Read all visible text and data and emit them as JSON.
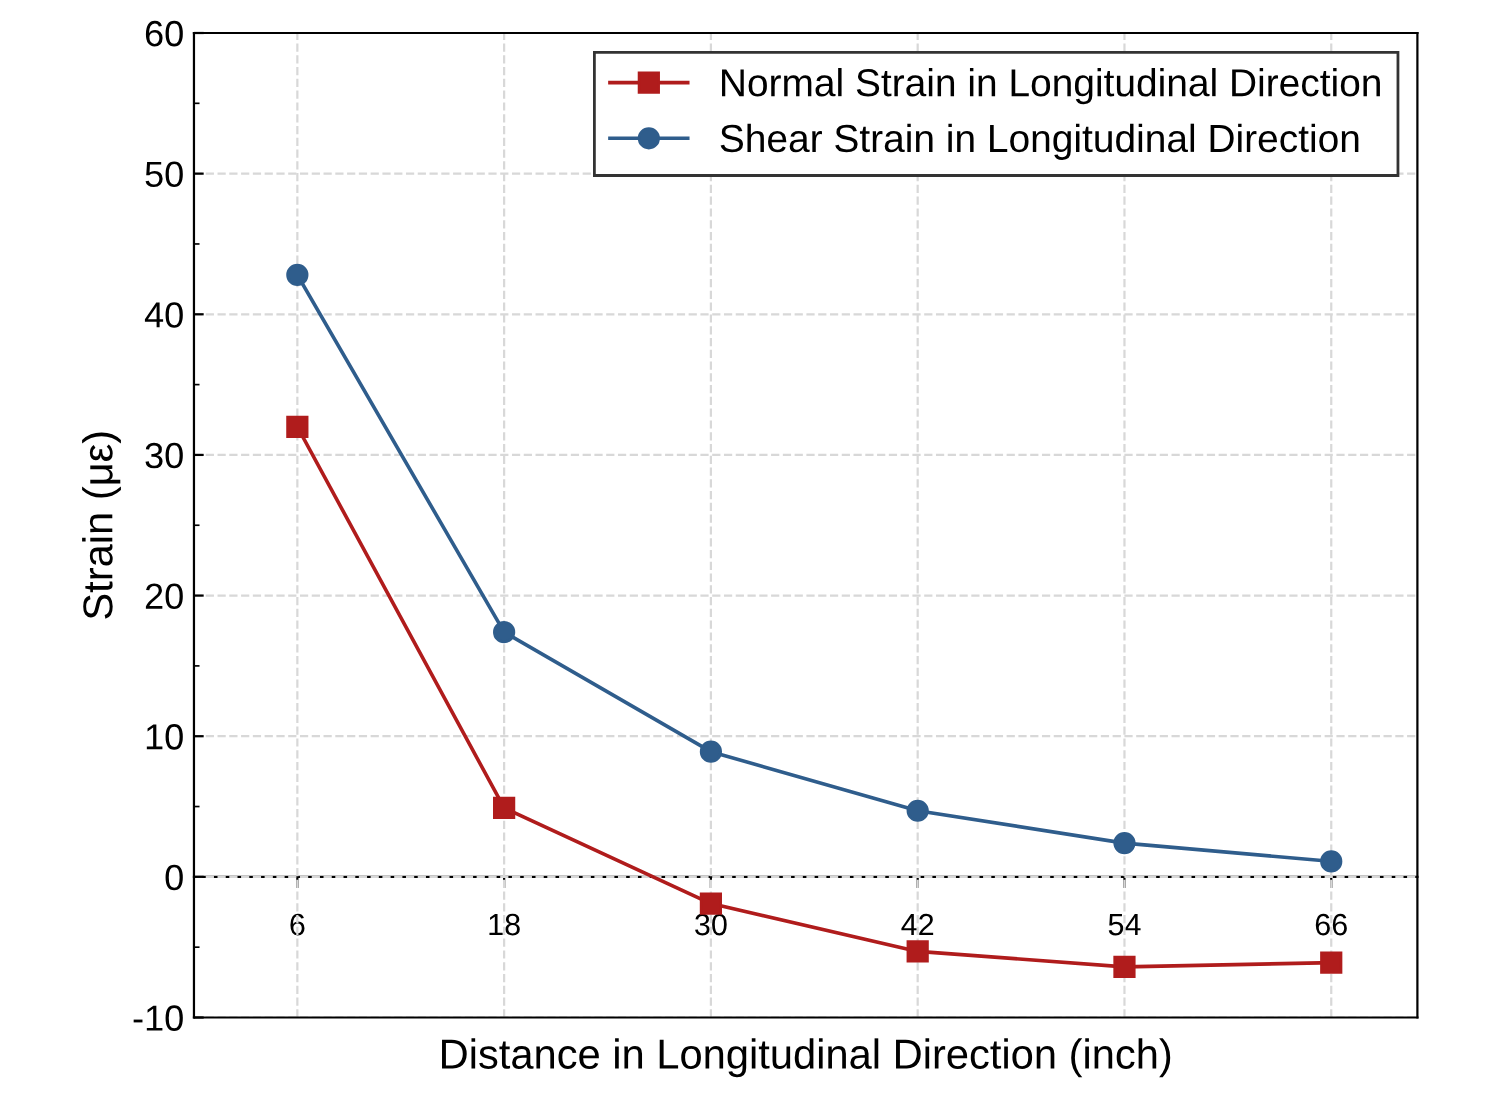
{
  "chart_data": {
    "type": "line",
    "xlabel": "Distance in Longitudinal Direction (inch)",
    "ylabel": "Strain (με)",
    "x": [
      6,
      18,
      30,
      42,
      54,
      66
    ],
    "series": [
      {
        "name": "Normal Strain in Longitudinal Direction",
        "color": "#b01c1c",
        "marker": "square",
        "values": [
          32.0,
          4.9,
          -1.9,
          -5.3,
          -6.4,
          -6.1
        ]
      },
      {
        "name": "Shear Strain in Longitudinal Direction",
        "color": "#2f5d8c",
        "marker": "circle",
        "values": [
          42.8,
          17.4,
          8.9,
          4.7,
          2.4,
          1.1
        ]
      }
    ],
    "xlim": [
      0,
      71
    ],
    "xticks": [
      6,
      18,
      30,
      42,
      54,
      66
    ],
    "ylim": [
      -10,
      60
    ],
    "yticks": [
      -10,
      0,
      10,
      20,
      30,
      40,
      50,
      60
    ],
    "grid": true,
    "legend": "top right",
    "line_style": "solid"
  }
}
